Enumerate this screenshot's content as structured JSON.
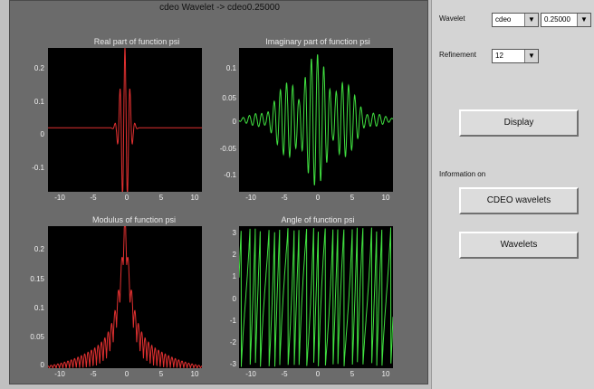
{
  "window": {
    "title": "cdeo Wavelet -> cdeo0.25000"
  },
  "plots": [
    {
      "title": "Real part of function psi",
      "yticks": [
        "0.2",
        "0.1",
        "0",
        "-0.1"
      ],
      "xticks": [
        "-10",
        "-5",
        "0",
        "5",
        "10"
      ],
      "trace_color": "#e03030"
    },
    {
      "title": "Imaginary part of function psi",
      "yticks": [
        "0.1",
        "0.05",
        "0",
        "-0.05",
        "-0.1"
      ],
      "xticks": [
        "-10",
        "-5",
        "0",
        "5",
        "10"
      ],
      "trace_color": "#40e040"
    },
    {
      "title": "Modulus of function psi",
      "yticks": [
        "0.2",
        "0.15",
        "0.1",
        "0.05",
        "0"
      ],
      "xticks": [
        "-10",
        "-5",
        "0",
        "5",
        "10"
      ],
      "trace_color": "#e03030"
    },
    {
      "title": "Angle of function psi",
      "yticks": [
        "3",
        "2",
        "1",
        "0",
        "-1",
        "-2",
        "-3"
      ],
      "xticks": [
        "-10",
        "-5",
        "0",
        "5",
        "10"
      ],
      "trace_color": "#40e040"
    }
  ],
  "panel": {
    "wavelet_label": "Wavelet",
    "wavelet_family": "cdeo",
    "wavelet_param": "0.25000",
    "refinement_label": "Refinement",
    "refinement_value": "12",
    "display_button": "Display",
    "info_label": "Information on",
    "family_info_button": "CDEO wavelets",
    "wavelets_button": "Wavelets",
    "dropdown_arrow": "▼"
  }
}
